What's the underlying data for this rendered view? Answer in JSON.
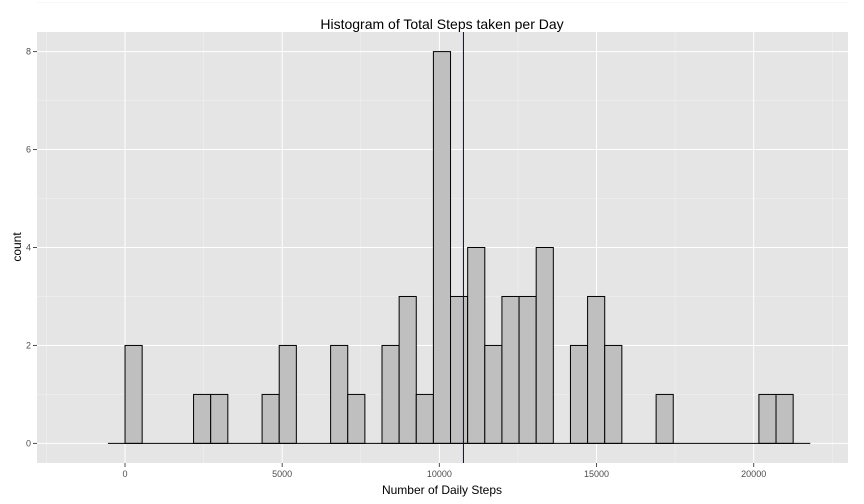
{
  "chart_data": {
    "type": "bar",
    "title": "Histogram of Total Steps taken per Day",
    "xlabel": "Number of Daily Steps",
    "ylabel": "count",
    "bin_width": 545,
    "xlim": [
      -2800,
      23000
    ],
    "ylim": [
      -0.4,
      8.4
    ],
    "xticks": [
      0,
      5000,
      10000,
      15000,
      20000
    ],
    "yticks": [
      0,
      2,
      4,
      6,
      8
    ],
    "grid": true,
    "mean_line": {
      "x": 10766,
      "color": "#00008b"
    },
    "colors": {
      "panel": "#e5e5e5",
      "bar_fill": "#bfbfbf",
      "bar_stroke": "#000000"
    },
    "bins": [
      {
        "x": -272,
        "count": 0
      },
      {
        "x": 273,
        "count": 2
      },
      {
        "x": 818,
        "count": 0
      },
      {
        "x": 1363,
        "count": 0
      },
      {
        "x": 1908,
        "count": 0
      },
      {
        "x": 2453,
        "count": 1
      },
      {
        "x": 2998,
        "count": 1
      },
      {
        "x": 3543,
        "count": 0
      },
      {
        "x": 4088,
        "count": 0
      },
      {
        "x": 4633,
        "count": 1
      },
      {
        "x": 5178,
        "count": 2
      },
      {
        "x": 5723,
        "count": 0
      },
      {
        "x": 6268,
        "count": 0
      },
      {
        "x": 6813,
        "count": 2
      },
      {
        "x": 7358,
        "count": 1
      },
      {
        "x": 7903,
        "count": 0
      },
      {
        "x": 8448,
        "count": 2
      },
      {
        "x": 8993,
        "count": 3
      },
      {
        "x": 9538,
        "count": 1
      },
      {
        "x": 10083,
        "count": 8
      },
      {
        "x": 10628,
        "count": 3
      },
      {
        "x": 11173,
        "count": 4
      },
      {
        "x": 11718,
        "count": 2
      },
      {
        "x": 12263,
        "count": 3
      },
      {
        "x": 12808,
        "count": 3
      },
      {
        "x": 13353,
        "count": 4
      },
      {
        "x": 13898,
        "count": 0
      },
      {
        "x": 14443,
        "count": 2
      },
      {
        "x": 14988,
        "count": 3
      },
      {
        "x": 15533,
        "count": 2
      },
      {
        "x": 16078,
        "count": 0
      },
      {
        "x": 16623,
        "count": 0
      },
      {
        "x": 17168,
        "count": 1
      },
      {
        "x": 17713,
        "count": 0
      },
      {
        "x": 18258,
        "count": 0
      },
      {
        "x": 18803,
        "count": 0
      },
      {
        "x": 19348,
        "count": 0
      },
      {
        "x": 19893,
        "count": 0
      },
      {
        "x": 20438,
        "count": 1
      },
      {
        "x": 20983,
        "count": 1
      },
      {
        "x": 21528,
        "count": 0
      }
    ]
  }
}
